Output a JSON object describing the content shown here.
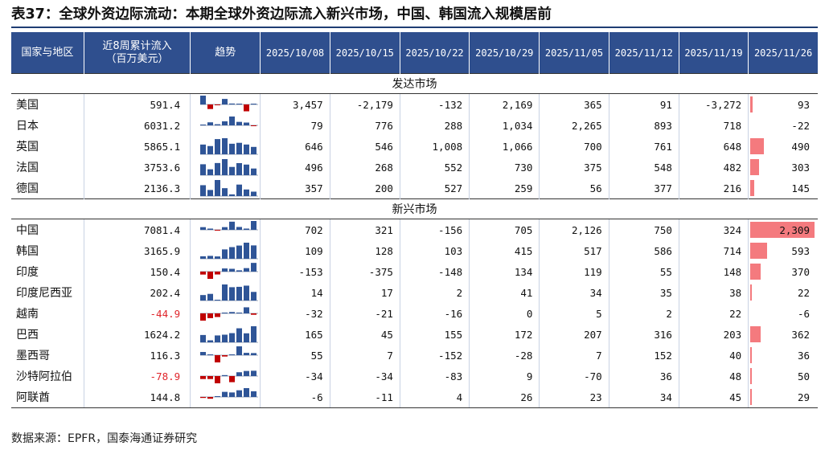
{
  "title": "表37：全球外资边际流动：本期全球外资边际流入新兴市场，中国、韩国流入规模居前",
  "headers": {
    "region": "国家与地区",
    "cum_line1": "近8周累计流入",
    "cum_line2": "（百万美元）",
    "trend": "趋势",
    "dates": [
      "2025/10/08",
      "2025/10/15",
      "2025/10/22",
      "2025/10/29",
      "2025/11/05",
      "2025/11/12",
      "2025/11/19",
      "2025/11/26"
    ]
  },
  "colors": {
    "header_bg": "#2f4f8e",
    "spark_pos": "#2f5597",
    "spark_neg": "#c00000",
    "bar": "#f47a7e",
    "neg_text": "#e0252b"
  },
  "sections": [
    {
      "label": "发达市场",
      "rows": [
        {
          "name": "美国",
          "cum": "591.4",
          "cum_neg": false,
          "values": [
            3457,
            -2179,
            -132,
            2169,
            365,
            91,
            -3272,
            93
          ],
          "labels": [
            "3,457",
            "-2,179",
            "-132",
            "2,169",
            "365",
            "91",
            "-3,272",
            "93"
          ]
        },
        {
          "name": "日本",
          "cum": "6031.2",
          "cum_neg": false,
          "values": [
            79,
            776,
            288,
            1034,
            2265,
            893,
            718,
            -22
          ],
          "labels": [
            "79",
            "776",
            "288",
            "1,034",
            "2,265",
            "893",
            "718",
            "-22"
          ]
        },
        {
          "name": "英国",
          "cum": "5865.1",
          "cum_neg": false,
          "values": [
            646,
            546,
            1008,
            1066,
            700,
            761,
            648,
            490
          ],
          "labels": [
            "646",
            "546",
            "1,008",
            "1,066",
            "700",
            "761",
            "648",
            "490"
          ]
        },
        {
          "name": "法国",
          "cum": "3753.6",
          "cum_neg": false,
          "values": [
            496,
            268,
            552,
            730,
            375,
            548,
            482,
            303
          ],
          "labels": [
            "496",
            "268",
            "552",
            "730",
            "375",
            "548",
            "482",
            "303"
          ]
        },
        {
          "name": "德国",
          "cum": "2136.3",
          "cum_neg": false,
          "values": [
            357,
            200,
            527,
            259,
            56,
            377,
            216,
            145
          ],
          "labels": [
            "357",
            "200",
            "527",
            "259",
            "56",
            "377",
            "216",
            "145"
          ]
        }
      ]
    },
    {
      "label": "新兴市场",
      "rows": [
        {
          "name": "中国",
          "cum": "7081.4",
          "cum_neg": false,
          "values": [
            702,
            321,
            -156,
            705,
            2126,
            750,
            324,
            2309
          ],
          "labels": [
            "702",
            "321",
            "-156",
            "705",
            "2,126",
            "750",
            "324",
            "2,309"
          ]
        },
        {
          "name": "韩国",
          "cum": "3165.9",
          "cum_neg": false,
          "values": [
            109,
            128,
            103,
            415,
            517,
            586,
            714,
            593
          ],
          "labels": [
            "109",
            "128",
            "103",
            "415",
            "517",
            "586",
            "714",
            "593"
          ]
        },
        {
          "name": "印度",
          "cum": "150.4",
          "cum_neg": false,
          "values": [
            -153,
            -375,
            -148,
            134,
            119,
            55,
            148,
            370
          ],
          "labels": [
            "-153",
            "-375",
            "-148",
            "134",
            "119",
            "55",
            "148",
            "370"
          ]
        },
        {
          "name": "印度尼西亚",
          "cum": "202.4",
          "cum_neg": false,
          "values": [
            14,
            17,
            2,
            41,
            34,
            35,
            38,
            22
          ],
          "labels": [
            "14",
            "17",
            "2",
            "41",
            "34",
            "35",
            "38",
            "22"
          ]
        },
        {
          "name": "越南",
          "cum": "-44.9",
          "cum_neg": true,
          "values": [
            -32,
            -21,
            -16,
            0,
            5,
            2,
            22,
            -6
          ],
          "labels": [
            "-32",
            "-21",
            "-16",
            "0",
            "5",
            "2",
            "22",
            "-6"
          ]
        },
        {
          "name": "巴西",
          "cum": "1624.2",
          "cum_neg": false,
          "values": [
            165,
            45,
            155,
            172,
            207,
            316,
            203,
            362
          ],
          "labels": [
            "165",
            "45",
            "155",
            "172",
            "207",
            "316",
            "203",
            "362"
          ]
        },
        {
          "name": "墨西哥",
          "cum": "116.3",
          "cum_neg": false,
          "values": [
            55,
            7,
            -152,
            -28,
            7,
            152,
            40,
            36
          ],
          "labels": [
            "55",
            "7",
            "-152",
            "-28",
            "7",
            "152",
            "40",
            "36"
          ]
        },
        {
          "name": "沙特阿拉伯",
          "cum": "-78.9",
          "cum_neg": true,
          "values": [
            -34,
            -34,
            -83,
            9,
            -70,
            36,
            48,
            50
          ],
          "labels": [
            "-34",
            "-34",
            "-83",
            "9",
            "-70",
            "36",
            "48",
            "50"
          ]
        },
        {
          "name": "阿联酋",
          "cum": "144.8",
          "cum_neg": false,
          "values": [
            -6,
            -11,
            4,
            26,
            23,
            34,
            45,
            29
          ],
          "labels": [
            "-6",
            "-11",
            "4",
            "26",
            "23",
            "34",
            "45",
            "29"
          ]
        }
      ]
    }
  ],
  "source": "数据来源：EPFR，国泰海通证券研究"
}
